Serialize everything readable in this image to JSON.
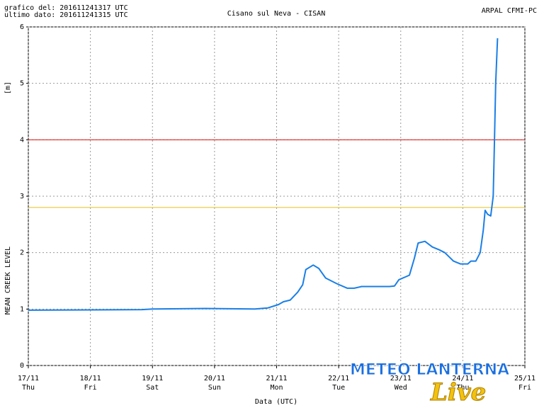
{
  "header": {
    "generated": "grafico del: 201611241317 UTC",
    "last_data": "ultimo dato: 201611241315 UTC",
    "source": "ARPAL CFMI-PC"
  },
  "watermark": {
    "text": "METEO LANTERNA",
    "sub": "Live"
  },
  "chart_data": {
    "type": "line",
    "title": "Cisano sul Neva - CISAN",
    "y_label": "MEAN CREEK LEVEL",
    "y_unit": "[m]",
    "x_label": "Data (UTC)",
    "x": [
      0,
      1.83,
      2.0,
      2.85,
      3.65,
      3.86,
      4.03,
      4.11,
      4.22,
      4.34,
      4.42,
      4.47,
      4.59,
      4.68,
      4.79,
      4.97,
      5.14,
      5.25,
      5.37,
      5.82,
      5.9,
      5.97,
      6.14,
      6.22,
      6.28,
      6.39,
      6.51,
      6.62,
      6.71,
      6.85,
      6.96,
      7.08,
      7.13,
      7.21,
      7.28,
      7.33,
      7.36,
      7.4,
      7.45,
      7.49,
      7.51,
      7.53,
      7.56
    ],
    "values": [
      0.98,
      0.99,
      1.0,
      1.01,
      1.0,
      1.02,
      1.08,
      1.13,
      1.16,
      1.3,
      1.43,
      1.7,
      1.78,
      1.72,
      1.55,
      1.45,
      1.37,
      1.37,
      1.4,
      1.4,
      1.41,
      1.52,
      1.6,
      1.9,
      2.17,
      2.2,
      2.1,
      2.05,
      2.0,
      1.85,
      1.8,
      1.8,
      1.85,
      1.85,
      2.0,
      2.4,
      2.75,
      2.68,
      2.65,
      3.0,
      4.0,
      5.0,
      5.8
    ],
    "color": "#1a7fe6",
    "thresholds": [
      {
        "value": 4,
        "color": "#dd1111"
      },
      {
        "value": 2.8,
        "color": "#e8c020"
      }
    ],
    "xlim": [
      0,
      8
    ],
    "ylim": [
      0,
      6
    ],
    "xticks": [
      {
        "value": 0,
        "label": "17/11"
      },
      {
        "value": 1,
        "label": "18/11"
      },
      {
        "value": 2,
        "label": "19/11"
      },
      {
        "value": 3,
        "label": "20/11"
      },
      {
        "value": 4,
        "label": "21/11"
      },
      {
        "value": 5,
        "label": "22/11"
      },
      {
        "value": 6,
        "label": "23/11"
      },
      {
        "value": 7,
        "label": "24/11"
      },
      {
        "value": 8,
        "label": "25/11"
      }
    ],
    "xtick_days": [
      "Thu",
      "Fri",
      "Sat",
      "Sun",
      "Mon",
      "Tue",
      "Wed",
      "Thu",
      "Fri"
    ],
    "yticks": [
      0,
      1,
      2,
      3,
      4,
      5,
      6
    ],
    "grid": true
  }
}
